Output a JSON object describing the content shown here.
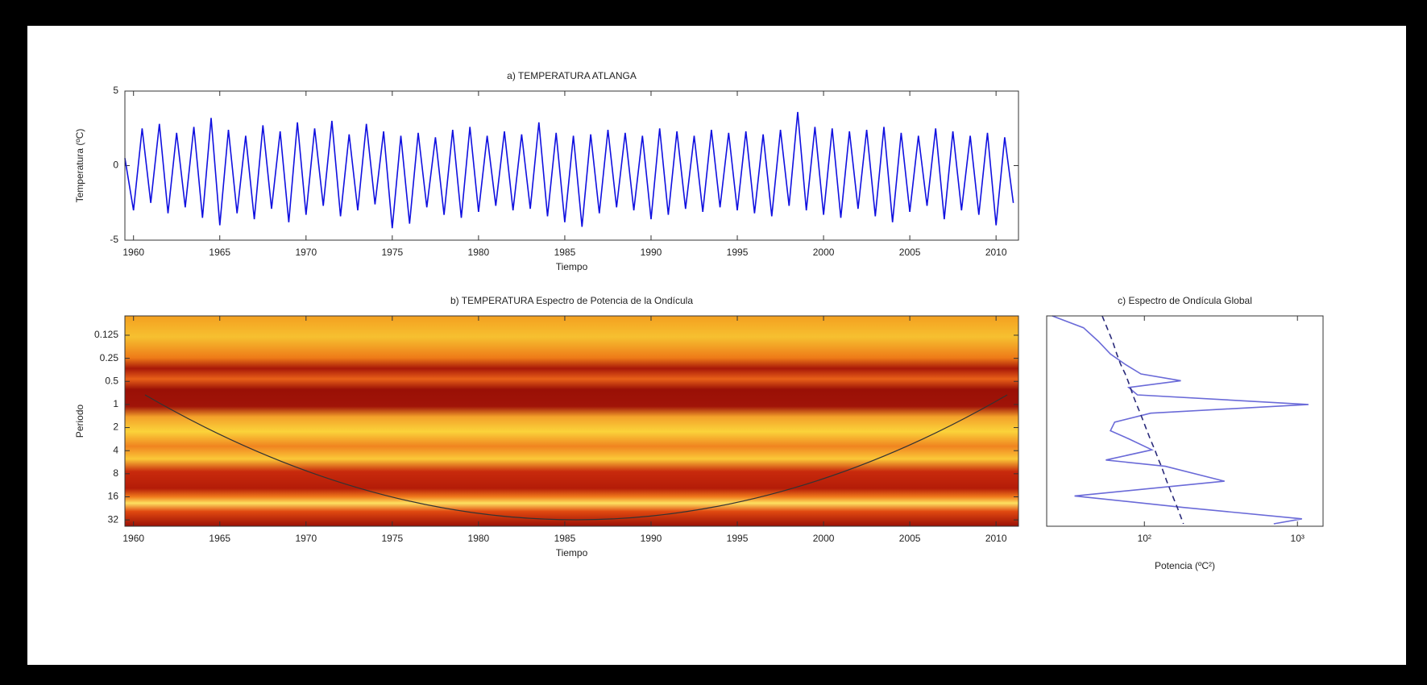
{
  "chart_data": [
    {
      "type": "line",
      "title": "a) TEMPERATURA ATLANGA",
      "xlabel": "Tiempo",
      "ylabel": "Temperatura (ºC)",
      "color": "#1010e0",
      "x": [
        1959.5,
        1960,
        1960.5,
        1961,
        1961.5,
        1962,
        1962.5,
        1963,
        1963.5,
        1964,
        1964.5,
        1965,
        1965.5,
        1966,
        1966.5,
        1967,
        1967.5,
        1968,
        1968.5,
        1969,
        1969.5,
        1970,
        1970.5,
        1971,
        1971.5,
        1972,
        1972.5,
        1973,
        1973.5,
        1974,
        1974.5,
        1975,
        1975.5,
        1976,
        1976.5,
        1977,
        1977.5,
        1978,
        1978.5,
        1979,
        1979.5,
        1980,
        1980.5,
        1981,
        1981.5,
        1982,
        1982.5,
        1983,
        1983.5,
        1984,
        1984.5,
        1985,
        1985.5,
        1986,
        1986.5,
        1987,
        1987.5,
        1988,
        1988.5,
        1989,
        1989.5,
        1990,
        1990.5,
        1991,
        1991.5,
        1992,
        1992.5,
        1993,
        1993.5,
        1994,
        1994.5,
        1995,
        1995.5,
        1996,
        1996.5,
        1997,
        1997.5,
        1998,
        1998.5,
        1999,
        1999.5,
        2000,
        2000.5,
        2001,
        2001.5,
        2002,
        2002.5,
        2003,
        2003.5,
        2004,
        2004.5,
        2005,
        2005.5,
        2006,
        2006.5,
        2007,
        2007.5,
        2008,
        2008.5,
        2009,
        2009.5,
        2010,
        2010.5,
        2011
      ],
      "values": [
        0.5,
        -3,
        2.5,
        -2.5,
        2.8,
        -3.2,
        2.2,
        -2.8,
        2.6,
        -3.5,
        3.2,
        -4,
        2.4,
        -3.2,
        2.0,
        -3.6,
        2.7,
        -2.9,
        2.3,
        -3.8,
        2.9,
        -3.3,
        2.5,
        -2.7,
        3.0,
        -3.4,
        2.1,
        -3.0,
        2.8,
        -2.6,
        2.3,
        -4.2,
        2.0,
        -3.9,
        2.2,
        -2.8,
        1.9,
        -3.3,
        2.4,
        -3.5,
        2.6,
        -3.1,
        2.0,
        -2.7,
        2.3,
        -3.0,
        2.1,
        -2.9,
        2.9,
        -3.4,
        2.2,
        -3.8,
        2.0,
        -4.1,
        2.1,
        -3.2,
        2.4,
        -2.8,
        2.2,
        -3.0,
        2.0,
        -3.6,
        2.5,
        -3.3,
        2.3,
        -2.9,
        2.0,
        -3.1,
        2.4,
        -2.8,
        2.2,
        -3.0,
        2.3,
        -3.2,
        2.1,
        -3.4,
        2.4,
        -2.7,
        3.6,
        -3.0,
        2.6,
        -3.3,
        2.5,
        -3.5,
        2.3,
        -2.9,
        2.4,
        -3.4,
        2.6,
        -3.8,
        2.2,
        -3.1,
        2.0,
        -2.7,
        2.5,
        -3.6,
        2.3,
        -3.0,
        2.0,
        -3.3,
        2.2,
        -4.0,
        1.9,
        -2.5
      ],
      "xlim": [
        1959.5,
        2011.3
      ],
      "xticks": [
        1960,
        1965,
        1970,
        1975,
        1980,
        1985,
        1990,
        1995,
        2000,
        2005,
        2010
      ],
      "ylim": [
        -5,
        5
      ],
      "yticks": [
        -5,
        0,
        5
      ]
    },
    {
      "type": "heatmap",
      "title": "b) TEMPERATURA Espectro de Potencia de la Ondícula",
      "xlabel": "Tiempo",
      "ylabel": "Periodo",
      "xlim": [
        1959.5,
        2011.3
      ],
      "xticks": [
        1960,
        1965,
        1970,
        1975,
        1980,
        1985,
        1990,
        1995,
        2000,
        2005,
        2010
      ],
      "ylim": [
        0.07,
        38.7
      ],
      "ylog_base": 2,
      "y_reversed": true,
      "yticks": [
        0.125,
        0.25,
        0.5,
        1,
        2,
        4,
        8,
        16,
        32
      ]
    },
    {
      "type": "line",
      "title": "c) Espectro de Ondícula Global",
      "xlabel": "Potencia (ºC²)",
      "y": [
        0.07,
        0.1,
        0.15,
        0.22,
        0.3,
        0.4,
        0.49,
        0.6,
        0.75,
        1.0,
        1.3,
        1.7,
        2.2,
        2.8,
        3.9,
        5.3,
        6.4,
        10,
        15.6,
        22,
        31,
        36
      ],
      "series": [
        {
          "color": "#6a6ad8",
          "linestyle": "solid",
          "values": [
            25,
            40,
            50,
            60,
            75,
            95,
            173,
            79,
            90,
            1180,
            110,
            64,
            60,
            79,
            112,
            56,
            137,
            334,
            35,
            180,
            1070,
            700
          ]
        },
        {
          "color": "#2a2a7a",
          "linestyle": "dashed",
          "values": [
            53,
            57,
            62,
            66,
            70,
            75,
            78,
            81,
            84,
            89,
            94,
            99,
            104,
            109,
            117,
            124,
            129,
            140,
            153,
            164,
            175,
            180
          ]
        }
      ],
      "xlog": true,
      "xlim": [
        23,
        1470
      ],
      "xticks": [
        {
          "value": 100,
          "label": "10²"
        },
        {
          "value": 1000,
          "label": "10³"
        }
      ],
      "ylim": [
        0.07,
        38.7
      ],
      "ylog_base": 2,
      "y_reversed": true
    }
  ]
}
